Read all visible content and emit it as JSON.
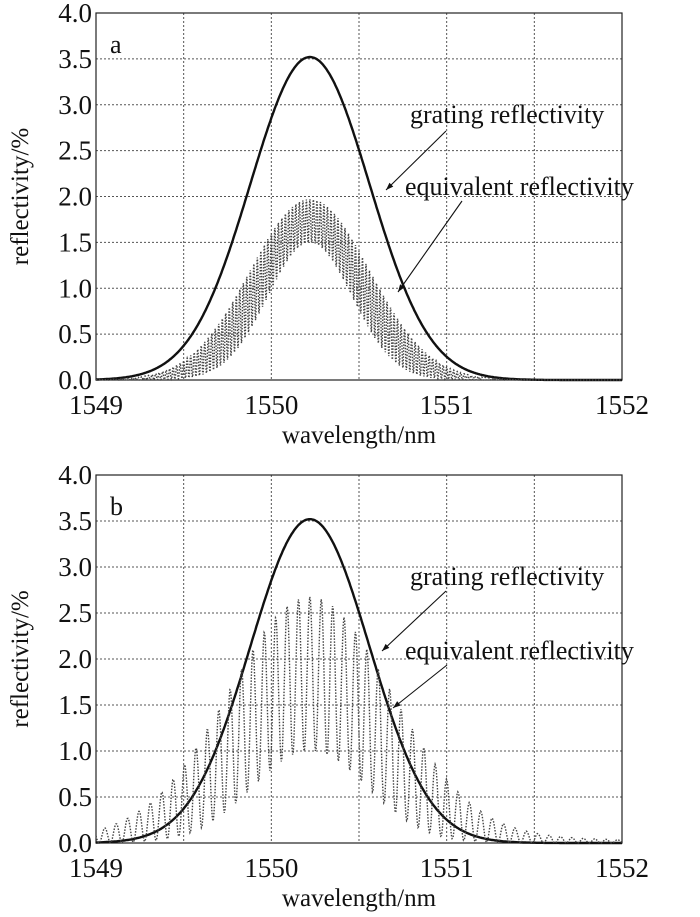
{
  "chart_data": [
    {
      "type": "line",
      "panel_label": "a",
      "xlabel": "wavelength/nm",
      "ylabel": "reflectivity/%",
      "xlim": [
        1549,
        1552
      ],
      "ylim": [
        0,
        4.0
      ],
      "xticks": [
        "1549",
        "1550",
        "1551",
        "1552"
      ],
      "yticks": [
        "0.0",
        "0.5",
        "1.0",
        "1.5",
        "2.0",
        "2.5",
        "3.0",
        "3.5",
        "4.0"
      ],
      "grid": true,
      "series": [
        {
          "name": "grating reflectivity",
          "style": "solid",
          "model": "gaussian",
          "peak": 3.52,
          "center": 1550.22,
          "sigma": 0.34
        },
        {
          "name": "equivalent reflectivity",
          "style": "dotted",
          "model": "oscillating",
          "upper_peak": 1.97,
          "lower_peak": 1.5,
          "center": 1550.22,
          "sigma": 0.34,
          "fringe_period": 0.02,
          "floor": 0.0
        }
      ],
      "annotations": [
        "grating reflectivity",
        "equivalent reflectivity"
      ]
    },
    {
      "type": "line",
      "panel_label": "b",
      "xlabel": "wavelength/nm",
      "ylabel": "reflectivity/%",
      "xlim": [
        1549,
        1552
      ],
      "ylim": [
        0,
        4.0
      ],
      "xticks": [
        "1549",
        "1550",
        "1551",
        "1552"
      ],
      "yticks": [
        "0.0",
        "0.5",
        "1.0",
        "1.5",
        "2.0",
        "2.5",
        "3.0",
        "3.5",
        "4.0"
      ],
      "grid": true,
      "series": [
        {
          "name": "grating reflectivity",
          "style": "solid",
          "model": "gaussian",
          "peak": 3.52,
          "center": 1550.22,
          "sigma": 0.34
        },
        {
          "name": "equivalent reflectivity",
          "style": "dotted",
          "model": "oscillating",
          "upper_peak": 2.58,
          "lower_peak": 1.0,
          "center": 1550.22,
          "sigma": 0.46,
          "fringe_period": 0.065,
          "floor": 0.1
        }
      ],
      "annotations": [
        "grating reflectivity",
        "equivalent reflectivity"
      ]
    }
  ]
}
